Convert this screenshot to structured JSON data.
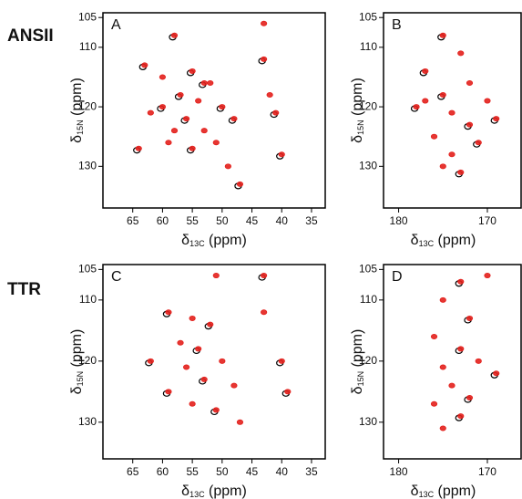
{
  "row_labels": [
    "ANSII",
    "TTR"
  ],
  "chart_data": [
    {
      "type": "scatter",
      "panel": "A",
      "xlabel": {
        "symbol": "δ",
        "sub": "13C",
        "unit": " (ppm)"
      },
      "ylabel": {
        "symbol": "δ",
        "sub": "15N",
        "unit": " (ppm)"
      },
      "xlim": [
        70,
        32.7
      ],
      "ylim": [
        137,
        104.2
      ],
      "xticks": [
        65,
        60,
        55,
        50,
        45,
        40,
        35
      ],
      "yticks": [
        105,
        110,
        120,
        130
      ],
      "series": [
        {
          "color": "#000000",
          "x": [
            58.3,
            63.3,
            55.3,
            57.3,
            50.3,
            56.3,
            48.3,
            55.3,
            64.3,
            47.3,
            43.3,
            41.3,
            40.3,
            53.3,
            60.3
          ],
          "y": [
            108.3,
            113.3,
            114.3,
            118.3,
            120.3,
            122.3,
            122.3,
            127.3,
            127.3,
            133.3,
            112.3,
            121.3,
            128.3,
            116.3,
            120.3
          ]
        },
        {
          "color": "#e3201c",
          "x": [
            58,
            63,
            60,
            55,
            52,
            57,
            54,
            50,
            62,
            56,
            53,
            48,
            59,
            55,
            51,
            64,
            49,
            47,
            43,
            43,
            42,
            41,
            40,
            53,
            58,
            60
          ],
          "y": [
            108,
            113,
            115,
            114,
            116,
            118,
            119,
            120,
            121,
            122,
            124,
            122,
            126,
            127,
            126,
            127,
            130,
            133,
            106,
            112,
            118,
            121,
            128,
            116,
            124,
            120
          ]
        }
      ]
    },
    {
      "type": "scatter",
      "panel": "B",
      "xlabel": {
        "symbol": "δ",
        "sub": "13C",
        "unit": " (ppm)"
      },
      "ylabel": {
        "symbol": "δ",
        "sub": "15N",
        "unit": " (ppm)"
      },
      "xlim": [
        181.7,
        166.2
      ],
      "ylim": [
        137,
        104.2
      ],
      "xticks": [
        180,
        170
      ],
      "yticks": [
        105,
        110,
        120,
        130
      ],
      "series": [
        {
          "color": "#000000",
          "x": [
            175.2,
            177.2,
            175.2,
            178.2,
            172.2,
            171.2,
            173.2,
            169.2
          ],
          "y": [
            108.3,
            114.3,
            118.3,
            120.3,
            123.3,
            126.3,
            131.3,
            122.3
          ]
        },
        {
          "color": "#e3201c",
          "x": [
            175,
            173,
            177,
            172,
            175,
            170,
            178,
            174,
            172,
            176,
            171,
            174,
            173,
            169,
            177,
            175
          ],
          "y": [
            108,
            111,
            114,
            116,
            118,
            119,
            120,
            121,
            123,
            125,
            126,
            128,
            131,
            122,
            119,
            130
          ]
        }
      ]
    },
    {
      "type": "scatter",
      "panel": "C",
      "xlabel": {
        "symbol": "δ",
        "sub": "13C",
        "unit": " (ppm)"
      },
      "ylabel": {
        "symbol": "δ",
        "sub": "15N",
        "unit": " (ppm)"
      },
      "xlim": [
        70,
        32.7
      ],
      "ylim": [
        136,
        104.2
      ],
      "xticks": [
        65,
        60,
        55,
        50,
        45,
        40,
        35
      ],
      "yticks": [
        105,
        110,
        120,
        130
      ],
      "series": [
        {
          "color": "#000000",
          "x": [
            59.3,
            52.3,
            54.3,
            62.3,
            53.3,
            59.3,
            51.3,
            43.3,
            40.3,
            39.3
          ],
          "y": [
            112.3,
            114.3,
            118.3,
            120.3,
            123.3,
            125.3,
            128.3,
            106.3,
            120.3,
            125.3
          ]
        },
        {
          "color": "#e3201c",
          "x": [
            51,
            59,
            55,
            52,
            57,
            54,
            50,
            62,
            56,
            53,
            48,
            59,
            55,
            51,
            47,
            43,
            43,
            40,
            39
          ],
          "y": [
            106,
            112,
            113,
            114,
            117,
            118,
            120,
            120,
            121,
            123,
            124,
            125,
            127,
            128,
            130,
            106,
            112,
            120,
            125
          ]
        }
      ]
    },
    {
      "type": "scatter",
      "panel": "D",
      "xlabel": {
        "symbol": "δ",
        "sub": "13C",
        "unit": " (ppm)"
      },
      "ylabel": {
        "symbol": "δ",
        "sub": "15N",
        "unit": " (ppm)"
      },
      "xlim": [
        181.7,
        166.2
      ],
      "ylim": [
        136,
        104.2
      ],
      "xticks": [
        180,
        170
      ],
      "yticks": [
        105,
        110,
        120,
        130
      ],
      "series": [
        {
          "color": "#000000",
          "x": [
            173.2,
            172.2,
            173.2,
            169.2,
            172.2,
            173.2
          ],
          "y": [
            107.3,
            113.3,
            118.3,
            122.3,
            126.3,
            129.3
          ]
        },
        {
          "color": "#e3201c",
          "x": [
            173,
            170,
            175,
            172,
            176,
            173,
            171,
            175,
            169,
            174,
            172,
            176,
            173,
            175
          ],
          "y": [
            107,
            106,
            110,
            113,
            116,
            118,
            120,
            121,
            122,
            124,
            126,
            127,
            129,
            131
          ]
        }
      ]
    }
  ]
}
